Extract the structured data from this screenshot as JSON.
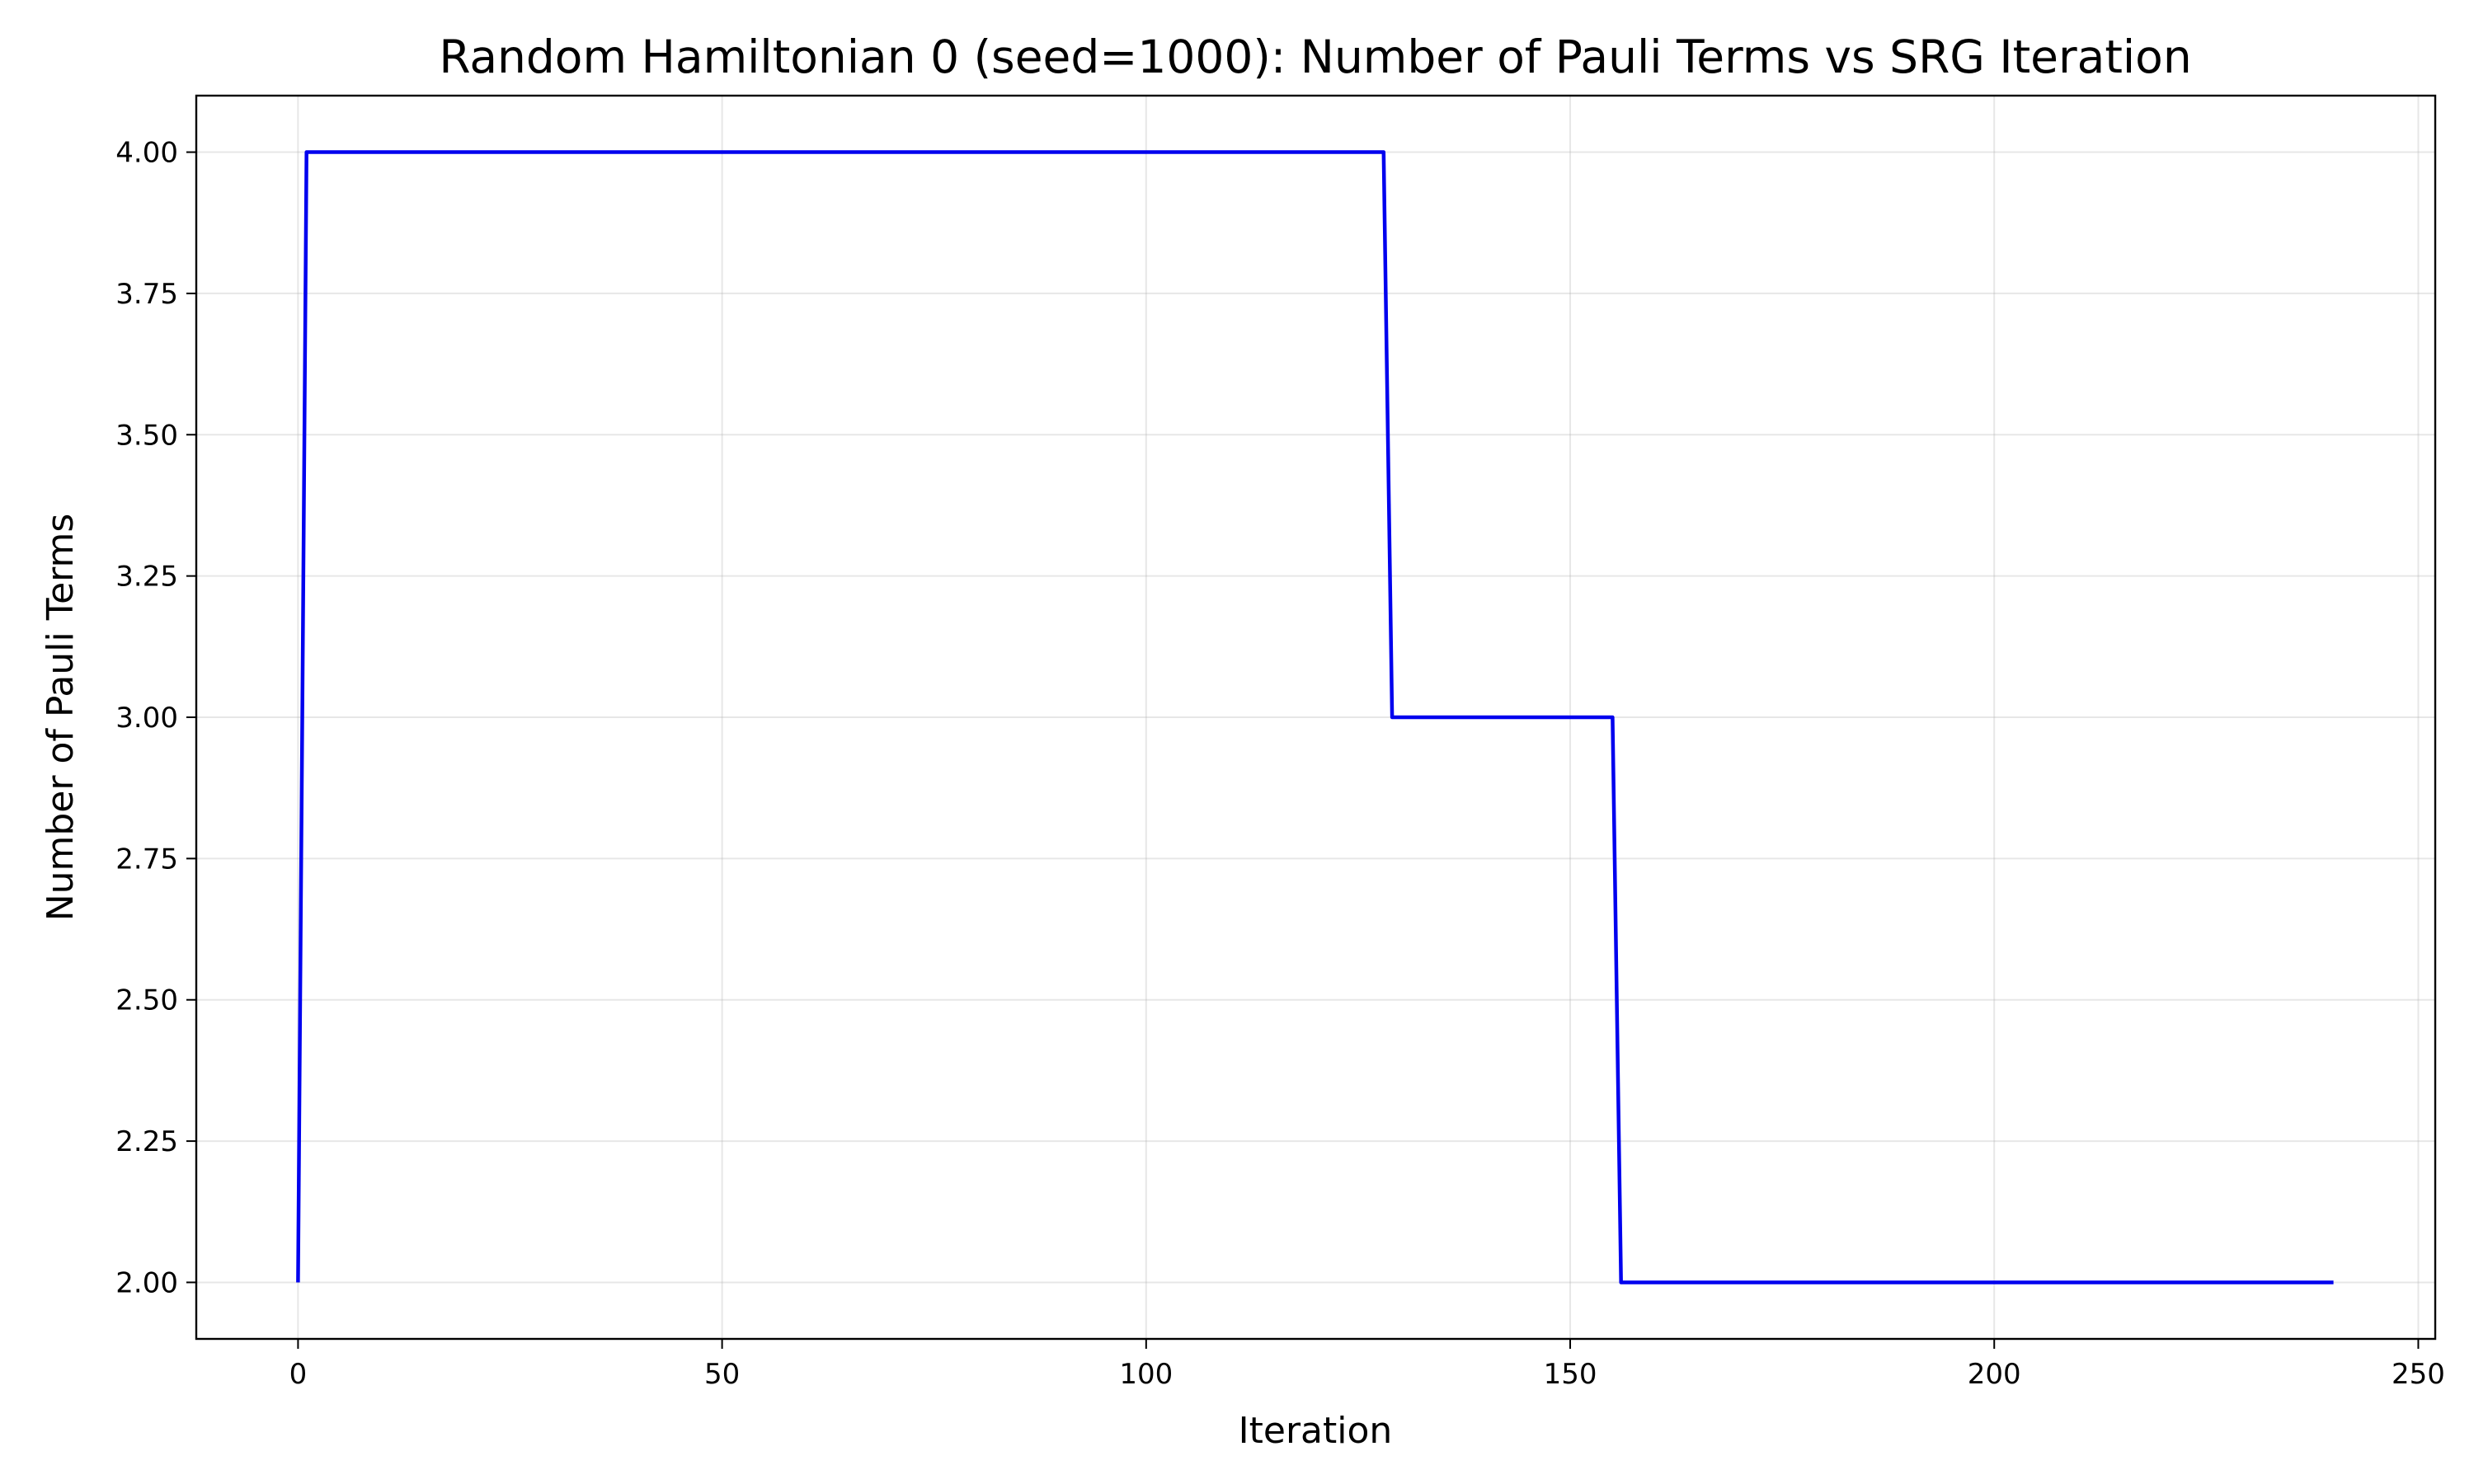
{
  "chart_data": {
    "type": "line",
    "title": "Random Hamiltonian 0 (seed=1000): Number of Pauli Terms vs SRG Iteration",
    "xlabel": "Iteration",
    "ylabel": "Number of Pauli Terms",
    "xlim": [
      -12,
      252
    ],
    "ylim": [
      1.9,
      4.1
    ],
    "xticks": [
      0,
      50,
      100,
      150,
      200,
      250
    ],
    "xtick_labels": [
      "0",
      "50",
      "100",
      "150",
      "200",
      "250"
    ],
    "yticks": [
      2.0,
      2.25,
      2.5,
      2.75,
      3.0,
      3.25,
      3.5,
      3.75,
      4.0
    ],
    "ytick_labels": [
      "2.00",
      "2.25",
      "2.50",
      "2.75",
      "3.00",
      "3.25",
      "3.50",
      "3.75",
      "4.00"
    ],
    "grid": true,
    "series": [
      {
        "color": "#0000ee",
        "x": [
          0,
          1,
          128,
          129,
          155,
          156,
          240
        ],
        "y": [
          2,
          4,
          4,
          3,
          3,
          2,
          2
        ]
      }
    ]
  }
}
